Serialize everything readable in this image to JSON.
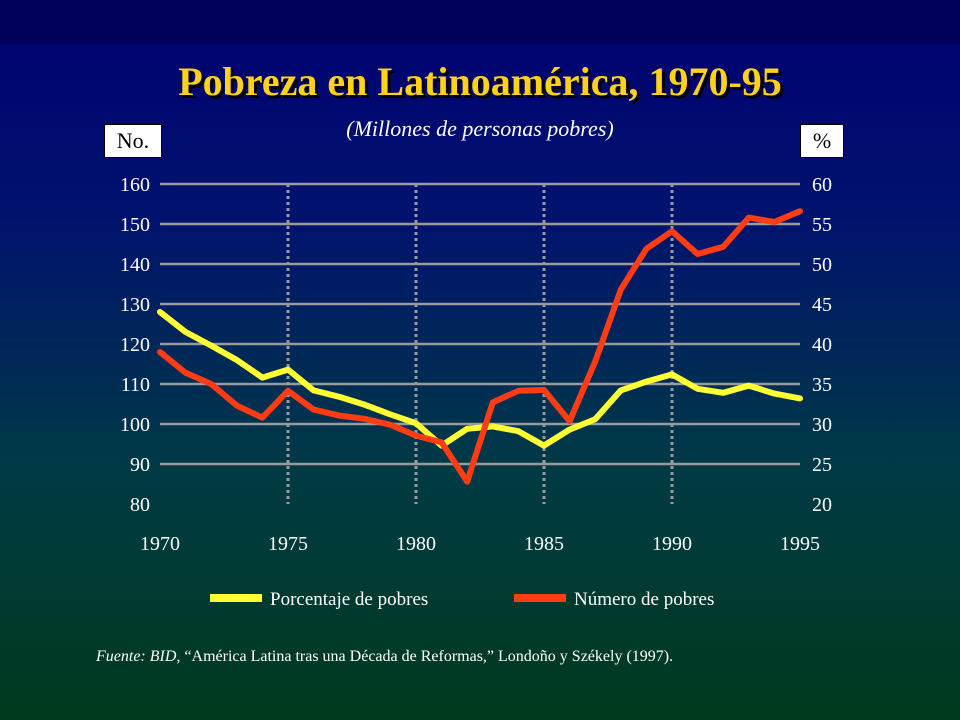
{
  "header": {
    "title": "Pobreza en Latinoamérica, 1970-95",
    "subtitle": "(Millones de personas pobres)",
    "left_unit": "No.",
    "right_unit": "%"
  },
  "footer": {
    "source_prefix": "Fuente: BID",
    "source_rest": ", “América Latina tras una Década de Reformas,” Londoño y Székely (1997)."
  },
  "colors": {
    "title": "#ffd21a",
    "porcentaje": "#ffff33",
    "numero": "#ff3c14",
    "grid": "#9a9a9a"
  },
  "chart_data": {
    "type": "line",
    "x_ticks": [
      1970,
      1975,
      1980,
      1985,
      1990,
      1995
    ],
    "xlim": [
      1970,
      1995
    ],
    "y_left": {
      "label": "No.",
      "ticks": [
        80,
        90,
        100,
        110,
        120,
        130,
        140,
        150,
        160
      ],
      "lim": [
        80,
        160
      ]
    },
    "y_right": {
      "label": "%",
      "ticks": [
        20,
        25,
        30,
        35,
        40,
        45,
        50,
        55,
        60
      ],
      "lim": [
        20,
        60
      ]
    },
    "grid": {
      "horizontal": true,
      "vertical_dotted_at": [
        1975,
        1980,
        1985,
        1990
      ]
    },
    "legend_position": "bottom",
    "series": [
      {
        "name": "Porcentaje de pobres",
        "axis": "right",
        "x": [
          1970,
          1971,
          1972,
          1973,
          1974,
          1975,
          1976,
          1977,
          1978,
          1979,
          1980,
          1981,
          1982,
          1983,
          1984,
          1985,
          1986,
          1987,
          1988,
          1989,
          1990,
          1991,
          1992,
          1993,
          1994,
          1995
        ],
        "y": [
          44,
          41.5,
          39.8,
          38,
          35.8,
          36.8,
          34.2,
          33.4,
          32.4,
          31.2,
          30.1,
          27.3,
          29.4,
          29.7,
          29.1,
          27.3,
          29.3,
          30.6,
          34.2,
          35.3,
          36.2,
          34.4,
          33.9,
          34.8,
          33.8,
          33.2
        ]
      },
      {
        "name": "Número de pobres",
        "axis": "left",
        "x": [
          1970,
          1971,
          1972,
          1973,
          1974,
          1975,
          1976,
          1977,
          1978,
          1979,
          1980,
          1981,
          1982,
          1983,
          1984,
          1985,
          1986,
          1987,
          1988,
          1989,
          1990,
          1991,
          1992,
          1993,
          1994,
          1995
        ],
        "y": [
          118,
          112.8,
          110,
          104.6,
          101.6,
          108.3,
          103.6,
          102.1,
          101.3,
          99.8,
          97.1,
          95.4,
          85.6,
          105.4,
          108.3,
          108.5,
          100.7,
          115.6,
          133.6,
          143.8,
          148.2,
          142.5,
          144.3,
          151.6,
          150.5,
          153.2
        ]
      }
    ]
  }
}
